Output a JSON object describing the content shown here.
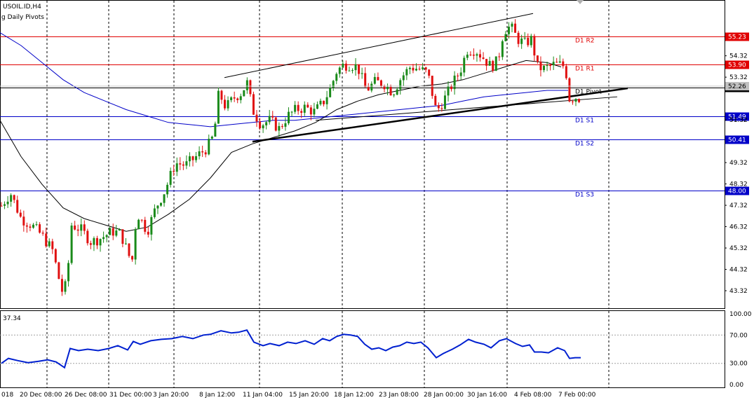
{
  "chart_title": "USOIL.ID,H4",
  "indicator_label": "g Daily Pivots",
  "current_price": "52.26",
  "rsi_value": "37.34",
  "colors": {
    "bull": "#1a8a1a",
    "bear": "#e01010",
    "resistance": "#e00000",
    "support": "#0000c8",
    "pivot": "#000000",
    "ma_slow": "#0000c8",
    "ma_fast": "#000000",
    "rsi": "#0020d0"
  },
  "chart_data": {
    "type": "candlestick",
    "symbol": "USOIL.ID",
    "timeframe": "H4",
    "ylim": [
      42.5,
      56.9
    ],
    "y_ticks": [
      "54.32",
      "53.32",
      "51.32",
      "49.32",
      "48.32",
      "47.32",
      "46.32",
      "45.32",
      "44.32",
      "43.32"
    ],
    "x_labels": [
      "018",
      "20 Dec 08:00",
      "26 Dec 08:00",
      "31 Dec 00:00",
      "3 Jan 20:00",
      "8 Jan 12:00",
      "11 Jan 04:00",
      "15 Jan 20:00",
      "18 Jan 12:00",
      "23 Jan 08:00",
      "28 Jan 00:00",
      "30 Jan 16:00",
      "4 Feb 08:00",
      "7 Feb 00:00"
    ],
    "pivots": [
      {
        "name": "D1 R2",
        "label": "D1 R2",
        "value": 55.23,
        "price_text": "55.23",
        "kind": "resistance"
      },
      {
        "name": "D1 R1",
        "label": "D1 R1",
        "value": 53.9,
        "price_text": "53.90",
        "kind": "resistance"
      },
      {
        "name": "D1 Pivot",
        "label": "D1 Pivot",
        "value": 52.82,
        "price_text": "52.82",
        "kind": "pivot"
      },
      {
        "name": "D1 S1",
        "label": "D1 S1",
        "value": 51.49,
        "price_text": "51.49",
        "kind": "support"
      },
      {
        "name": "D1 S2",
        "label": "D1 S2",
        "value": 50.41,
        "price_text": "50.41",
        "kind": "support"
      },
      {
        "name": "D1 S3",
        "label": "D1 S3",
        "value": 48.0,
        "price_text": "48.00",
        "kind": "support"
      }
    ],
    "price_path": [
      [
        2,
        47.3
      ],
      [
        15,
        47.9
      ],
      [
        30,
        46.7
      ],
      [
        45,
        46.4
      ],
      [
        60,
        45.9
      ],
      [
        75,
        45.2
      ],
      [
        88,
        43.3
      ],
      [
        95,
        43.6
      ],
      [
        102,
        46.4
      ],
      [
        115,
        46.2
      ],
      [
        130,
        45.6
      ],
      [
        145,
        45.8
      ],
      [
        160,
        46.1
      ],
      [
        172,
        46.0
      ],
      [
        188,
        44.6
      ],
      [
        195,
        47.0
      ],
      [
        210,
        46.1
      ],
      [
        222,
        47.2
      ],
      [
        235,
        48.0
      ],
      [
        250,
        49.3
      ],
      [
        265,
        49.2
      ],
      [
        280,
        49.6
      ],
      [
        295,
        50.0
      ],
      [
        305,
        50.6
      ],
      [
        312,
        52.6
      ],
      [
        322,
        51.9
      ],
      [
        335,
        52.4
      ],
      [
        345,
        52.6
      ],
      [
        352,
        53.1
      ],
      [
        360,
        51.8
      ],
      [
        372,
        51.1
      ],
      [
        385,
        51.3
      ],
      [
        398,
        50.9
      ],
      [
        410,
        51.5
      ],
      [
        422,
        51.8
      ],
      [
        435,
        51.9
      ],
      [
        448,
        51.7
      ],
      [
        460,
        52.1
      ],
      [
        470,
        52.7
      ],
      [
        480,
        53.6
      ],
      [
        490,
        53.9
      ],
      [
        500,
        53.9
      ],
      [
        510,
        53.8
      ],
      [
        522,
        52.7
      ],
      [
        535,
        53.1
      ],
      [
        548,
        53.0
      ],
      [
        560,
        52.6
      ],
      [
        572,
        53.3
      ],
      [
        585,
        53.8
      ],
      [
        598,
        53.7
      ],
      [
        610,
        53.5
      ],
      [
        622,
        51.7
      ],
      [
        632,
        52.2
      ],
      [
        645,
        53.0
      ],
      [
        656,
        53.6
      ],
      [
        666,
        54.6
      ],
      [
        678,
        54.6
      ],
      [
        690,
        54.2
      ],
      [
        700,
        53.8
      ],
      [
        710,
        54.1
      ],
      [
        718,
        55.5
      ],
      [
        728,
        55.7
      ],
      [
        738,
        55.1
      ],
      [
        748,
        54.9
      ],
      [
        758,
        55.1
      ],
      [
        766,
        53.8
      ],
      [
        776,
        53.7
      ],
      [
        788,
        53.9
      ],
      [
        800,
        53.9
      ],
      [
        806,
        53.8
      ],
      [
        812,
        52.3
      ],
      [
        820,
        52.4
      ],
      [
        828,
        52.3
      ]
    ],
    "ma_fast_path": [
      [
        0,
        51.3
      ],
      [
        30,
        49.6
      ],
      [
        60,
        48.3
      ],
      [
        90,
        47.2
      ],
      [
        120,
        46.7
      ],
      [
        150,
        46.4
      ],
      [
        180,
        46.1
      ],
      [
        210,
        46.3
      ],
      [
        240,
        46.9
      ],
      [
        270,
        47.6
      ],
      [
        300,
        48.6
      ],
      [
        330,
        49.8
      ],
      [
        360,
        50.2
      ],
      [
        390,
        50.5
      ],
      [
        420,
        50.8
      ],
      [
        450,
        51.2
      ],
      [
        480,
        51.8
      ],
      [
        510,
        52.2
      ],
      [
        540,
        52.5
      ],
      [
        570,
        52.7
      ],
      [
        600,
        52.9
      ],
      [
        630,
        53.0
      ],
      [
        660,
        53.2
      ],
      [
        690,
        53.5
      ],
      [
        720,
        53.8
      ],
      [
        750,
        54.1
      ],
      [
        780,
        54.0
      ],
      [
        800,
        53.8
      ]
    ],
    "ma_slow_path": [
      [
        0,
        55.4
      ],
      [
        30,
        54.8
      ],
      [
        60,
        54.0
      ],
      [
        90,
        53.2
      ],
      [
        120,
        52.6
      ],
      [
        150,
        52.2
      ],
      [
        180,
        51.8
      ],
      [
        210,
        51.5
      ],
      [
        240,
        51.2
      ],
      [
        270,
        51.1
      ],
      [
        300,
        51.0
      ],
      [
        330,
        51.1
      ],
      [
        360,
        51.2
      ],
      [
        390,
        51.3
      ],
      [
        420,
        51.3
      ],
      [
        450,
        51.4
      ],
      [
        480,
        51.5
      ],
      [
        510,
        51.6
      ],
      [
        540,
        51.7
      ],
      [
        570,
        51.8
      ],
      [
        600,
        51.9
      ],
      [
        630,
        52.0
      ],
      [
        660,
        52.2
      ],
      [
        690,
        52.4
      ],
      [
        720,
        52.5
      ],
      [
        750,
        52.6
      ],
      [
        780,
        52.7
      ],
      [
        810,
        52.7
      ]
    ],
    "trendlines": [
      {
        "name": "upper-channel",
        "from": [
          320,
          53.3
        ],
        "to": [
          760,
          56.3
        ],
        "width": 1
      },
      {
        "name": "lower-trendline",
        "from": [
          360,
          50.3
        ],
        "to": [
          895,
          52.8
        ],
        "width": 2.5
      },
      {
        "name": "mid-trendline",
        "from": [
          450,
          51.3
        ],
        "to": [
          880,
          52.4
        ],
        "width": 1
      }
    ],
    "rsi": {
      "ylim": [
        0,
        100
      ],
      "y_ticks": [
        "100.00",
        "70.00",
        "30.00",
        "0.00"
      ],
      "levels": [
        70,
        30
      ],
      "path": [
        [
          2,
          30
        ],
        [
          12,
          37
        ],
        [
          25,
          34
        ],
        [
          40,
          31
        ],
        [
          55,
          33
        ],
        [
          68,
          35
        ],
        [
          80,
          32
        ],
        [
          92,
          24
        ],
        [
          100,
          51
        ],
        [
          112,
          48
        ],
        [
          125,
          50
        ],
        [
          140,
          48
        ],
        [
          155,
          51
        ],
        [
          168,
          55
        ],
        [
          182,
          49
        ],
        [
          190,
          61
        ],
        [
          200,
          57
        ],
        [
          215,
          62
        ],
        [
          230,
          64
        ],
        [
          245,
          65
        ],
        [
          260,
          68
        ],
        [
          275,
          65
        ],
        [
          290,
          70
        ],
        [
          300,
          71
        ],
        [
          315,
          76
        ],
        [
          330,
          73
        ],
        [
          340,
          74
        ],
        [
          352,
          77
        ],
        [
          362,
          60
        ],
        [
          375,
          55
        ],
        [
          385,
          58
        ],
        [
          398,
          55
        ],
        [
          410,
          60
        ],
        [
          422,
          58
        ],
        [
          435,
          62
        ],
        [
          448,
          57
        ],
        [
          460,
          65
        ],
        [
          470,
          62
        ],
        [
          480,
          68
        ],
        [
          490,
          71
        ],
        [
          500,
          70
        ],
        [
          510,
          68
        ],
        [
          520,
          57
        ],
        [
          530,
          50
        ],
        [
          540,
          52
        ],
        [
          550,
          48
        ],
        [
          560,
          53
        ],
        [
          570,
          55
        ],
        [
          580,
          60
        ],
        [
          590,
          58
        ],
        [
          600,
          60
        ],
        [
          610,
          52
        ],
        [
          622,
          38
        ],
        [
          632,
          44
        ],
        [
          645,
          50
        ],
        [
          656,
          56
        ],
        [
          668,
          64
        ],
        [
          678,
          60
        ],
        [
          690,
          57
        ],
        [
          700,
          52
        ],
        [
          712,
          62
        ],
        [
          722,
          65
        ],
        [
          735,
          58
        ],
        [
          745,
          54
        ],
        [
          755,
          56
        ],
        [
          762,
          46
        ],
        [
          772,
          46
        ],
        [
          782,
          45
        ],
        [
          795,
          52
        ],
        [
          805,
          48
        ],
        [
          812,
          37
        ],
        [
          820,
          38
        ],
        [
          828,
          38
        ]
      ]
    }
  }
}
